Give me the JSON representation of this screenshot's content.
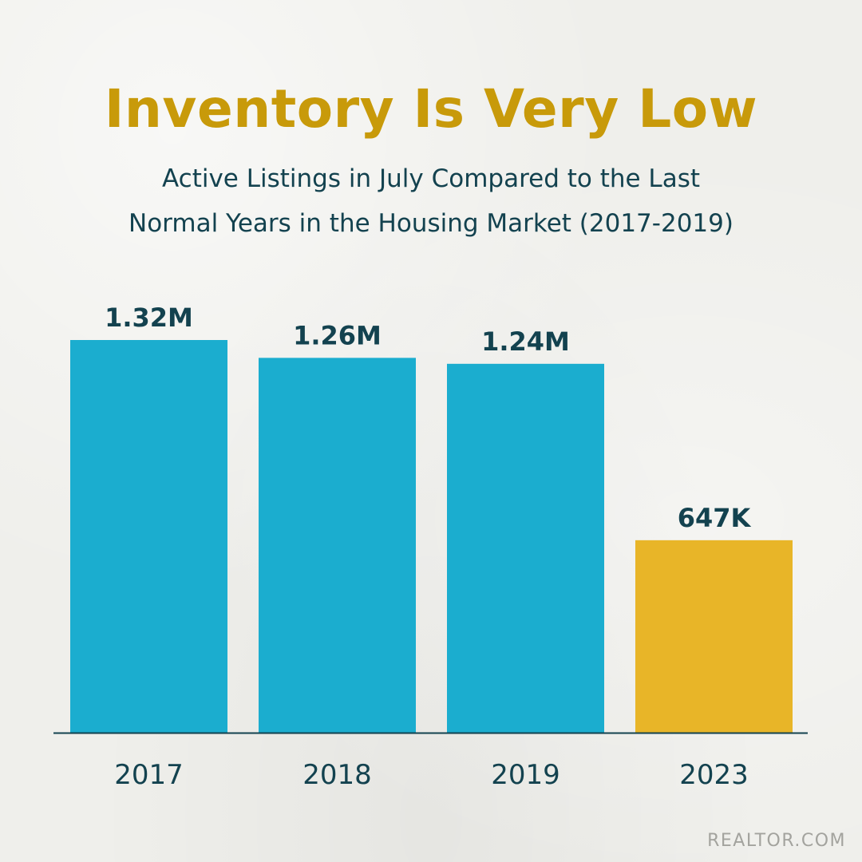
{
  "header": {
    "title": "Inventory Is Very Low",
    "subtitle_line1": "Active Listings in July Compared to the Last",
    "subtitle_line2": "Normal Years in the Housing Market (2017-2019)"
  },
  "footer": {
    "source": "REALTOR.COM"
  },
  "colors": {
    "title": "#c89a0a",
    "text": "#13424f",
    "bar_normal": "#1badcf",
    "bar_highlight": "#e8b528",
    "axis": "#13424f"
  },
  "chart_data": {
    "type": "bar",
    "categories": [
      "2017",
      "2018",
      "2019",
      "2023"
    ],
    "values": [
      1320000,
      1260000,
      1240000,
      647000
    ],
    "value_labels": [
      "1.32M",
      "1.26M",
      "1.24M",
      "647K"
    ],
    "highlight_index": 3,
    "title": "Inventory Is Very Low",
    "subtitle": "Active Listings in July Compared to the Last Normal Years in the Housing Market (2017-2019)",
    "xlabel": "",
    "ylabel": "",
    "ylim": [
      0,
      1320000
    ],
    "grid": false,
    "legend": "none"
  }
}
